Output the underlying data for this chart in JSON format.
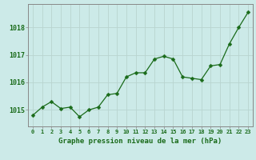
{
  "x": [
    0,
    1,
    2,
    3,
    4,
    5,
    6,
    7,
    8,
    9,
    10,
    11,
    12,
    13,
    14,
    15,
    16,
    17,
    18,
    19,
    20,
    21,
    22,
    23
  ],
  "y": [
    1014.8,
    1015.1,
    1015.3,
    1015.05,
    1015.1,
    1014.75,
    1015.0,
    1015.1,
    1015.55,
    1015.6,
    1016.2,
    1016.35,
    1016.35,
    1016.85,
    1016.95,
    1016.85,
    1016.2,
    1016.15,
    1016.1,
    1016.6,
    1016.65,
    1017.4,
    1018.0,
    1018.55
  ],
  "line_color": "#1a6b1a",
  "marker": "D",
  "marker_size": 2.5,
  "bg_color": "#cceae8",
  "grid_color": "#b8d4d0",
  "xlabel": "Graphe pression niveau de la mer (hPa)",
  "xlabel_color": "#1a6b1a",
  "tick_color": "#1a6b1a",
  "axis_color": "#888888",
  "ylim": [
    1014.4,
    1018.85
  ],
  "yticks": [
    1015,
    1016,
    1017,
    1018
  ],
  "xticks": [
    0,
    1,
    2,
    3,
    4,
    5,
    6,
    7,
    8,
    9,
    10,
    11,
    12,
    13,
    14,
    15,
    16,
    17,
    18,
    19,
    20,
    21,
    22,
    23
  ],
  "figsize": [
    3.2,
    2.0
  ],
  "dpi": 100
}
